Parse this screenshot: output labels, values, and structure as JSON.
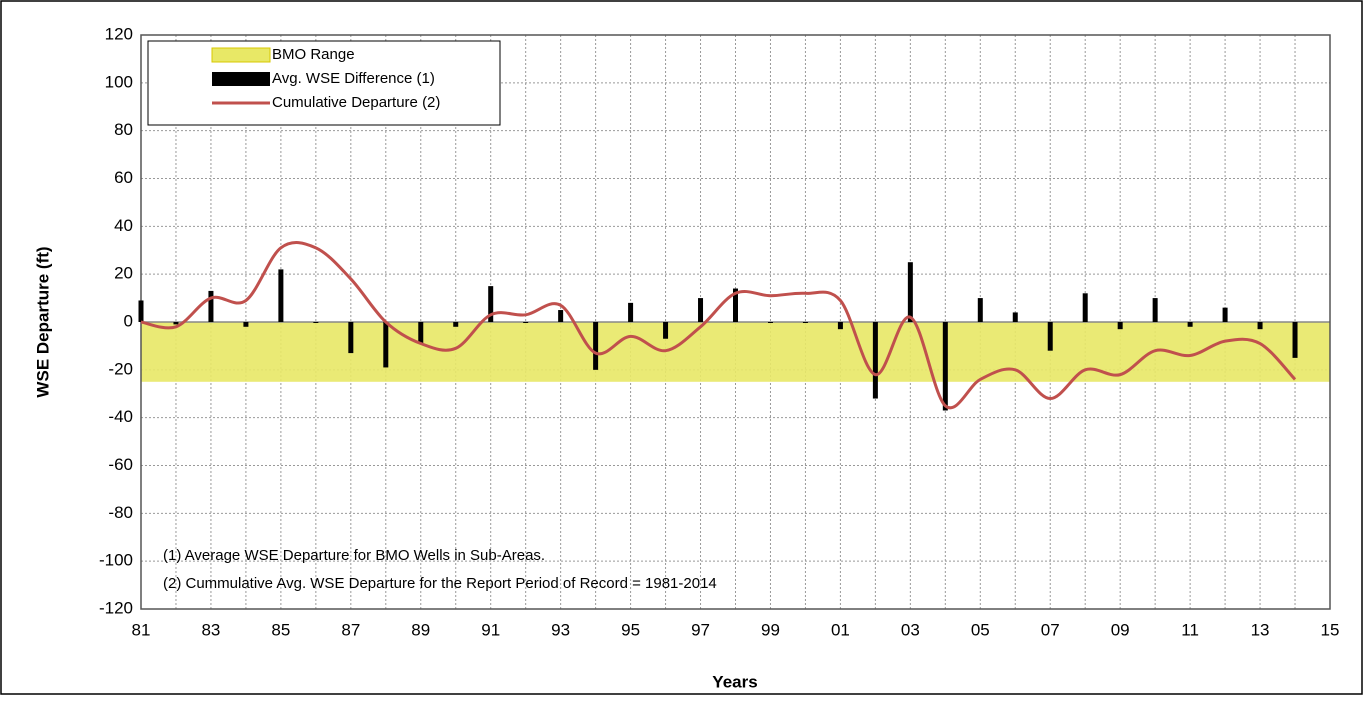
{
  "chart_data": {
    "type": "combo",
    "x_label": "Years",
    "y_label": "WSE Departure (ft)",
    "x": [
      1981,
      1982,
      1983,
      1984,
      1985,
      1986,
      1987,
      1988,
      1989,
      1990,
      1991,
      1992,
      1993,
      1994,
      1995,
      1996,
      1997,
      1998,
      1999,
      2000,
      2001,
      2002,
      2003,
      2004,
      2005,
      2006,
      2007,
      2008,
      2009,
      2010,
      2011,
      2012,
      2013,
      2014
    ],
    "band": {
      "name": "BMO Range",
      "color": "#e8e866",
      "low": -25,
      "high": 0
    },
    "series": [
      {
        "name": "Avg. WSE Difference (1)",
        "type": "bar",
        "color": "#000000",
        "values": [
          9,
          -1,
          13,
          -2,
          22,
          0,
          -13,
          -19,
          -9,
          -2,
          15,
          0,
          5,
          -20,
          8,
          -7,
          10,
          14,
          0,
          0,
          -3,
          -32,
          25,
          -37,
          10,
          4,
          -12,
          12,
          -3,
          10,
          -2,
          6,
          -3,
          -15
        ]
      },
      {
        "name": "Cumulative Departure (2)",
        "type": "line",
        "color": "#c0504d",
        "values": [
          0,
          -2,
          10,
          9,
          31,
          31,
          18,
          0,
          -9,
          -11,
          3,
          3,
          7,
          -13,
          -6,
          -12,
          -2,
          12,
          11,
          12,
          9,
          -22,
          2,
          -35,
          -24,
          -20,
          -32,
          -20,
          -22,
          -12,
          -14,
          -8,
          -9,
          -24
        ]
      }
    ],
    "xlim": [
      1981,
      2015
    ],
    "xticks": [
      {
        "value": 1981,
        "label": "81"
      },
      {
        "value": 1983,
        "label": "83"
      },
      {
        "value": 1985,
        "label": "85"
      },
      {
        "value": 1987,
        "label": "87"
      },
      {
        "value": 1989,
        "label": "89"
      },
      {
        "value": 1991,
        "label": "91"
      },
      {
        "value": 1993,
        "label": "93"
      },
      {
        "value": 1995,
        "label": "95"
      },
      {
        "value": 1997,
        "label": "97"
      },
      {
        "value": 1999,
        "label": "99"
      },
      {
        "value": 2001,
        "label": "01"
      },
      {
        "value": 2003,
        "label": "03"
      },
      {
        "value": 2005,
        "label": "05"
      },
      {
        "value": 2007,
        "label": "07"
      },
      {
        "value": 2009,
        "label": "09"
      },
      {
        "value": 2011,
        "label": "11"
      },
      {
        "value": 2013,
        "label": "13"
      },
      {
        "value": 2015,
        "label": "15"
      }
    ],
    "ylim": [
      -120,
      120
    ],
    "yticks": [
      -120,
      -100,
      -80,
      -60,
      -40,
      -20,
      0,
      20,
      40,
      60,
      80,
      100,
      120
    ],
    "grid": true,
    "legend": "top-left",
    "annotations": [
      "(1) Average WSE Departure for BMO Wells in Sub-Areas.",
      "(2) Cummulative Avg. WSE Departure for the Report Period of Record = 1981-2014"
    ]
  }
}
